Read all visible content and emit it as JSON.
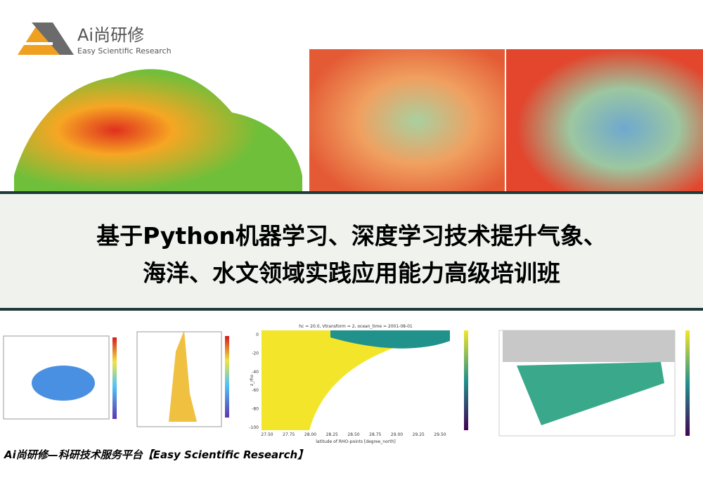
{
  "logo": {
    "name": "Ai尚研修",
    "tagline": "Easy Scientific Research"
  },
  "banner": {
    "title_lines": [
      "基于Python机器学习、深度学习技术提升气象、",
      "海洋、水文领域实践应用能力高级培训班"
    ]
  },
  "thumbnail_3": {
    "title": "hc = 20.0, Vtransform = 2, ocean_time = 2001-08-01",
    "y_label": "z_rho",
    "y_ticks": [
      "0",
      "-20",
      "-40",
      "-60",
      "-80",
      "-100"
    ],
    "x_ticks": [
      "27.50",
      "27.75",
      "28.00",
      "28.25",
      "28.50",
      "28.75",
      "29.00",
      "29.25",
      "29.50"
    ],
    "x_label": "latitude of RHO-points [degree_north]"
  },
  "footer": "Ai尚研修—科研技术服务平台【Easy Scientific Research】"
}
